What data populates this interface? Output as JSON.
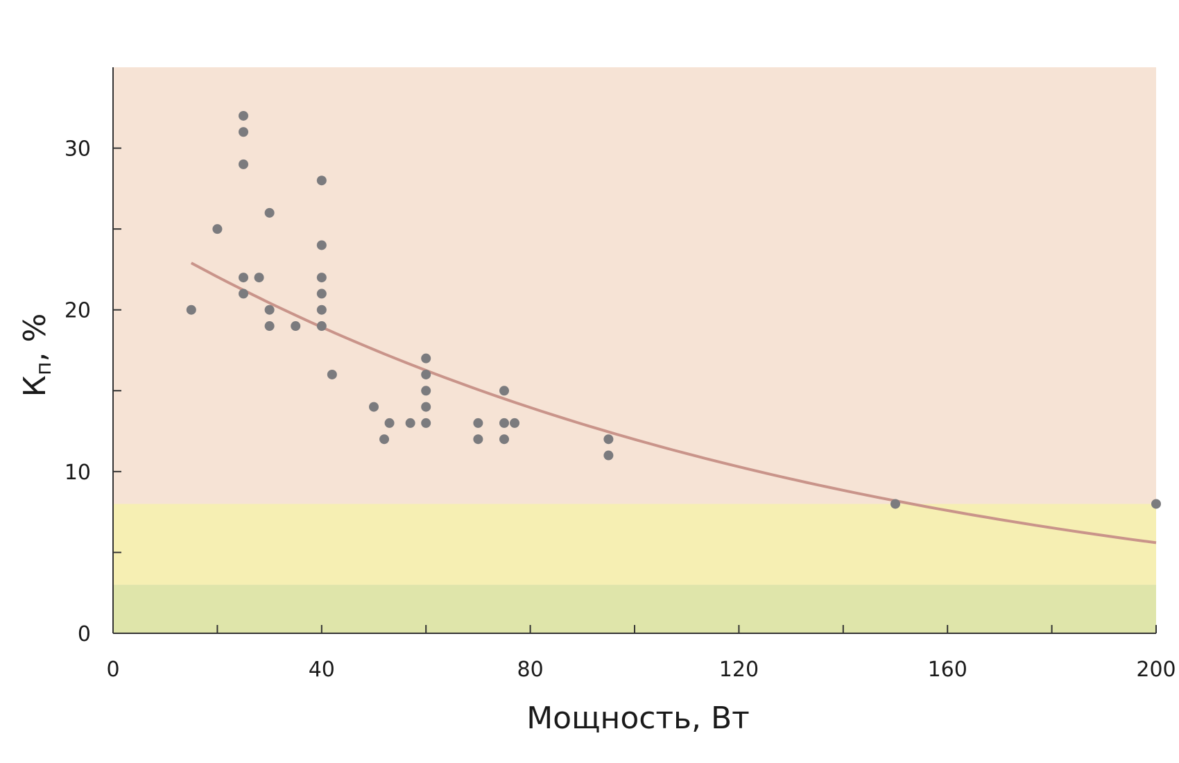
{
  "chart_data": {
    "type": "scatter",
    "title": "",
    "xlabel": "Мощность, Вт",
    "ylabel": {
      "main": "К",
      "subscript": "п",
      "suffix": ", %"
    },
    "xlim": [
      0,
      200
    ],
    "ylim": [
      0,
      35
    ],
    "x_ticks": [
      0,
      40,
      80,
      120,
      160,
      200
    ],
    "x_minor_ticks": [
      20,
      60,
      100,
      140,
      180
    ],
    "y_ticks": [
      0,
      10,
      20,
      30
    ],
    "y_minor_ticks": [
      5,
      15,
      25
    ],
    "bands": [
      {
        "from": 0,
        "to": 3,
        "color": "#dfe5aa"
      },
      {
        "from": 3,
        "to": 8,
        "color": "#f6efb3"
      },
      {
        "from": 8,
        "to": 35,
        "color": "#f6e3d5"
      }
    ],
    "points": [
      [
        15,
        20
      ],
      [
        20,
        25
      ],
      [
        25,
        32
      ],
      [
        25,
        31
      ],
      [
        25,
        29
      ],
      [
        25,
        22
      ],
      [
        25,
        21
      ],
      [
        28,
        22
      ],
      [
        30,
        26
      ],
      [
        30,
        20
      ],
      [
        30,
        19
      ],
      [
        35,
        19
      ],
      [
        40,
        28
      ],
      [
        40,
        24
      ],
      [
        40,
        22
      ],
      [
        40,
        21
      ],
      [
        40,
        20
      ],
      [
        40,
        19
      ],
      [
        42,
        16
      ],
      [
        50,
        14
      ],
      [
        52,
        12
      ],
      [
        53,
        13
      ],
      [
        57,
        13
      ],
      [
        60,
        17
      ],
      [
        60,
        16
      ],
      [
        60,
        15
      ],
      [
        60,
        14
      ],
      [
        60,
        13
      ],
      [
        70,
        13
      ],
      [
        70,
        12
      ],
      [
        75,
        15
      ],
      [
        75,
        13
      ],
      [
        75,
        12
      ],
      [
        77,
        13
      ],
      [
        95,
        12
      ],
      [
        95,
        11
      ],
      [
        150,
        8
      ],
      [
        200,
        8
      ]
    ],
    "trend": {
      "type": "exponential",
      "x_start": 15,
      "x_end": 200,
      "curve_points": [
        [
          15,
          22.9
        ],
        [
          40,
          19.0
        ],
        [
          80,
          14.2
        ],
        [
          120,
          10.4
        ],
        [
          160,
          7.7
        ],
        [
          200,
          5.6
        ]
      ]
    },
    "colors": {
      "points": "#7b7b7e",
      "trend": "#c9948a",
      "axis": "#333333"
    }
  }
}
